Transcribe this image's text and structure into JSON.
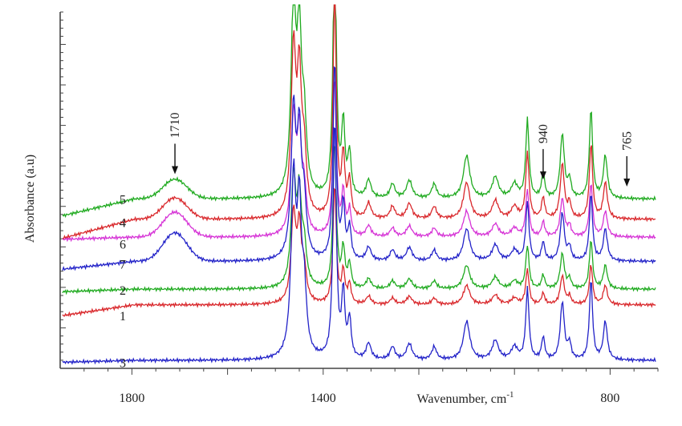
{
  "chart_data": {
    "type": "line",
    "xlabel": "Wavenumber, cm",
    "xlabel_sup": "-1",
    "ylabel": "Absorbance (a.u)",
    "x_reversed": true,
    "xlim": [
      1950,
      700
    ],
    "ylim": [
      0,
      1
    ],
    "x_ticks": [
      1800,
      1400,
      800
    ],
    "grid": false,
    "series": [
      {
        "name": "5",
        "color": "#1faa1f",
        "label_y": 0.475,
        "baseline": 0.475,
        "start_x": 1945,
        "start_y": 0.428
      },
      {
        "name": "4",
        "color": "#d9272b",
        "label_y": 0.41,
        "baseline": 0.418,
        "start_x": 1945,
        "start_y": 0.365
      },
      {
        "name": "6",
        "color": "#d633d6",
        "label_y": 0.35,
        "baseline": 0.368,
        "start_x": 1945,
        "start_y": 0.362
      },
      {
        "name": "7",
        "color": "#2222c8",
        "label_y": 0.293,
        "baseline": 0.3,
        "start_x": 1945,
        "start_y": 0.278
      },
      {
        "name": "2",
        "color": "#1faa1f",
        "label_y": 0.22,
        "baseline": 0.222,
        "start_x": 1945,
        "start_y": 0.215
      },
      {
        "name": "1",
        "color": "#d9272b",
        "label_y": 0.148,
        "baseline": 0.178,
        "start_x": 1945,
        "start_y": 0.148
      },
      {
        "name": "3",
        "color": "#2222c8",
        "label_y": 0.017,
        "baseline": 0.022,
        "start_x": 1945,
        "start_y": 0.017
      }
    ],
    "annotations": [
      {
        "text": "1710",
        "x": 1710,
        "tip_y": 0.545,
        "rotate": true
      },
      {
        "text": "940",
        "x": 940,
        "tip_y": 0.53,
        "rotate": true
      },
      {
        "text": "765",
        "x": 765,
        "tip_y": 0.51,
        "rotate": true
      }
    ]
  }
}
